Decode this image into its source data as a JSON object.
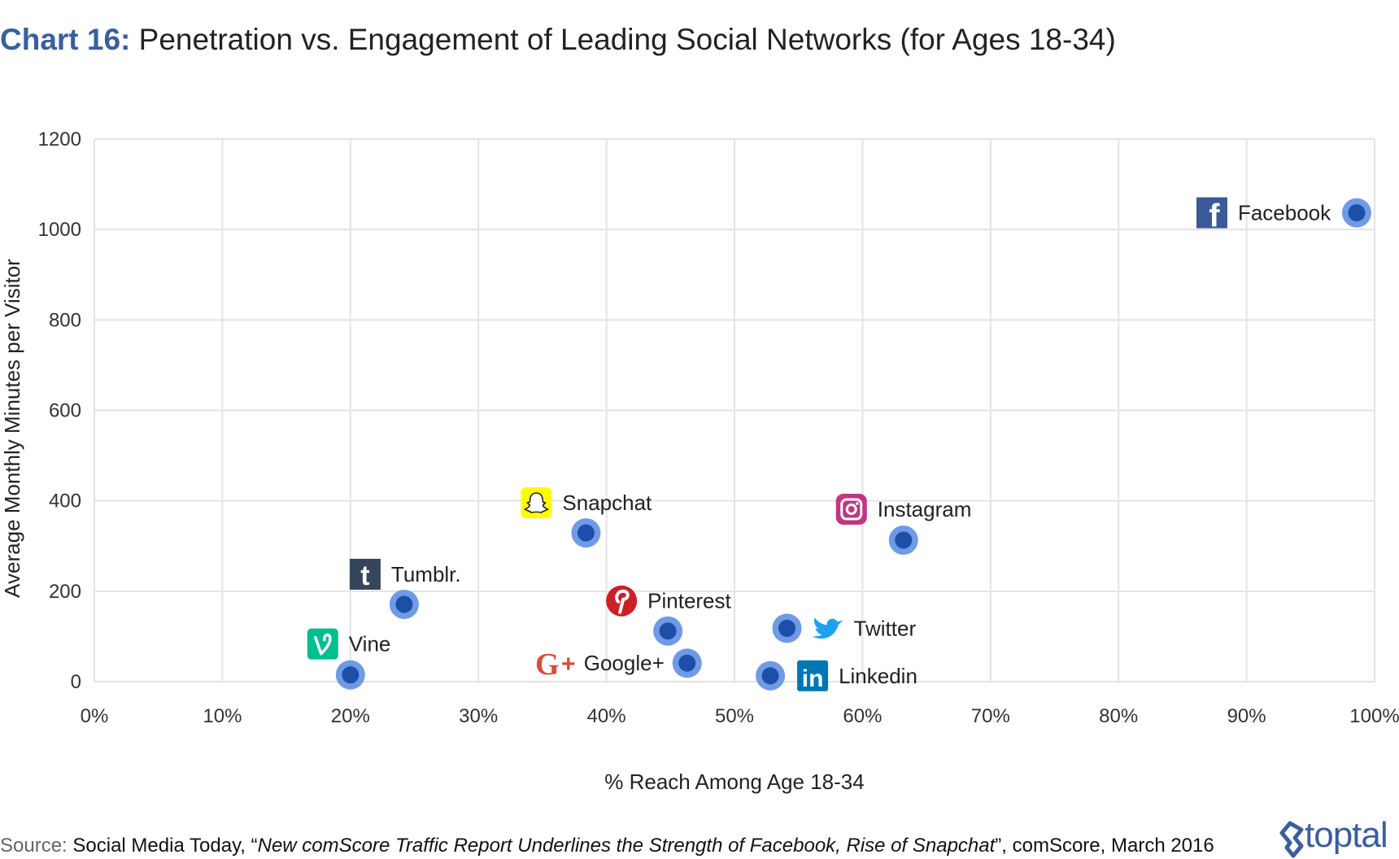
{
  "header": {
    "title_prefix": "Chart 16:",
    "title_main": "Penetration vs. Engagement of Leading Social Networks (for Ages 18-34)"
  },
  "footer": {
    "source_label": "Source:",
    "source_before": " Social Media Today, “",
    "source_italic": "New comScore Traffic Report Underlines the Strength of Facebook, Rise of Snapchat",
    "source_after": "”, comScore, March 2016",
    "brand": "toptal"
  },
  "chart_data": {
    "type": "scatter",
    "xlabel": "% Reach Among Age 18-34",
    "ylabel": "Average Monthly Minutes per Visitor",
    "xlim": [
      0,
      100
    ],
    "ylim": [
      0,
      1200
    ],
    "x_ticks": [
      "0%",
      "10%",
      "20%",
      "30%",
      "40%",
      "50%",
      "60%",
      "70%",
      "80%",
      "90%",
      "100%"
    ],
    "y_ticks": [
      "0",
      "200",
      "400",
      "600",
      "800",
      "1000",
      "1200"
    ],
    "grid": true,
    "colors": {
      "point_outer": "#6f9ae6",
      "point_inner": "#1d4fa8",
      "grid": "#e3e3e3"
    },
    "points": [
      {
        "name": "Facebook",
        "x": 98.6,
        "y": 1037,
        "icon": "facebook-icon",
        "color": "#3b5998"
      },
      {
        "name": "Instagram",
        "x": 63.2,
        "y": 313,
        "icon": "instagram-icon",
        "color": "#c13584"
      },
      {
        "name": "Snapchat",
        "x": 38.4,
        "y": 329,
        "icon": "snapchat-icon",
        "color": "#fffc00"
      },
      {
        "name": "Tumblr.",
        "x": 24.2,
        "y": 171,
        "icon": "tumblr-icon",
        "color": "#35465c"
      },
      {
        "name": "Pinterest",
        "x": 44.8,
        "y": 112,
        "icon": "pinterest-icon",
        "color": "#cb2027"
      },
      {
        "name": "Twitter",
        "x": 54.1,
        "y": 118,
        "icon": "twitter-icon",
        "color": "#1da1f2"
      },
      {
        "name": "Vine",
        "x": 20.0,
        "y": 15,
        "icon": "vine-icon",
        "color": "#00bf8f"
      },
      {
        "name": "Google+",
        "x": 46.3,
        "y": 41,
        "icon": "google-plus-icon",
        "color": "#dd4b39"
      },
      {
        "name": "Linkedin",
        "x": 52.8,
        "y": 13,
        "icon": "linkedin-icon",
        "color": "#0077b5"
      }
    ]
  }
}
